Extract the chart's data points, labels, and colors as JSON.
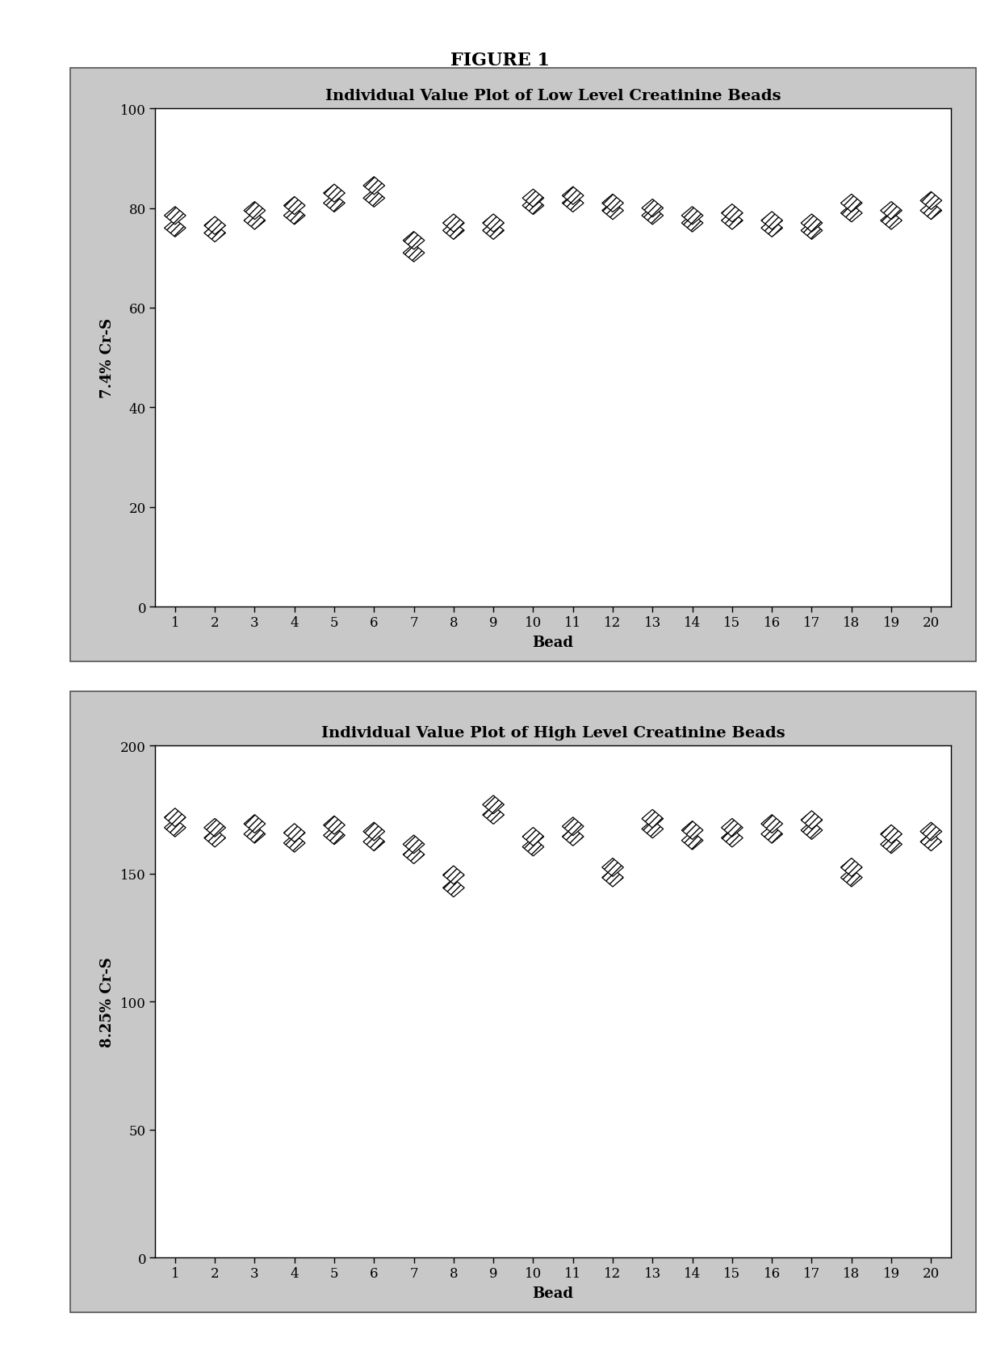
{
  "figure_title": "FIGURE 1",
  "plot1": {
    "title": "Individual Value Plot of Low Level Creatinine Beads",
    "ylabel": "7.4% Cr-S",
    "xlabel": "Bead",
    "ylim": [
      0,
      100
    ],
    "yticks": [
      0,
      20,
      40,
      60,
      80,
      100
    ],
    "xticks": [
      1,
      2,
      3,
      4,
      5,
      6,
      7,
      8,
      9,
      10,
      11,
      12,
      13,
      14,
      15,
      16,
      17,
      18,
      19,
      20
    ],
    "data": {
      "1": [
        76.0,
        78.5
      ],
      "2": [
        75.0,
        76.5
      ],
      "3": [
        77.5,
        79.5
      ],
      "4": [
        78.5,
        80.5
      ],
      "5": [
        81.0,
        83.0
      ],
      "6": [
        82.0,
        84.5
      ],
      "7": [
        71.0,
        73.5
      ],
      "8": [
        75.5,
        77.0
      ],
      "9": [
        75.5,
        77.0
      ],
      "10": [
        80.5,
        82.0
      ],
      "11": [
        81.0,
        82.5
      ],
      "12": [
        79.5,
        81.0
      ],
      "13": [
        78.5,
        80.0
      ],
      "14": [
        77.0,
        78.5
      ],
      "15": [
        77.5,
        79.0
      ],
      "16": [
        76.0,
        77.5
      ],
      "17": [
        75.5,
        77.0
      ],
      "18": [
        79.0,
        81.0
      ],
      "19": [
        77.5,
        79.5
      ],
      "20": [
        79.5,
        81.5
      ]
    }
  },
  "plot2": {
    "title": "Individual Value Plot of High Level Creatinine Beads",
    "ylabel": "8.25% Cr-S",
    "xlabel": "Bead",
    "ylim": [
      0,
      200
    ],
    "yticks": [
      0,
      50,
      100,
      150,
      200
    ],
    "xticks": [
      1,
      2,
      3,
      4,
      5,
      6,
      7,
      8,
      9,
      10,
      11,
      12,
      13,
      14,
      15,
      16,
      17,
      18,
      19,
      20
    ],
    "data": {
      "1": [
        168.0,
        172.0
      ],
      "2": [
        164.0,
        168.0
      ],
      "3": [
        165.5,
        169.5
      ],
      "4": [
        162.0,
        166.0
      ],
      "5": [
        165.0,
        169.0
      ],
      "6": [
        162.5,
        166.5
      ],
      "7": [
        157.5,
        161.5
      ],
      "8": [
        144.5,
        149.5
      ],
      "9": [
        173.0,
        177.0
      ],
      "10": [
        160.5,
        164.5
      ],
      "11": [
        164.5,
        168.5
      ],
      "12": [
        148.5,
        152.5
      ],
      "13": [
        167.5,
        171.5
      ],
      "14": [
        163.0,
        167.0
      ],
      "15": [
        164.0,
        168.0
      ],
      "16": [
        165.5,
        169.5
      ],
      "17": [
        167.0,
        171.0
      ],
      "18": [
        148.5,
        152.5
      ],
      "19": [
        161.5,
        165.5
      ],
      "20": [
        162.5,
        166.5
      ]
    }
  },
  "outer_bg": "#ffffff",
  "panel_bg": "#c8c8c8",
  "plot_bg": "#ffffff",
  "font_family": "DejaVu Serif",
  "title_fontsize": 14,
  "label_fontsize": 13,
  "tick_fontsize": 12
}
